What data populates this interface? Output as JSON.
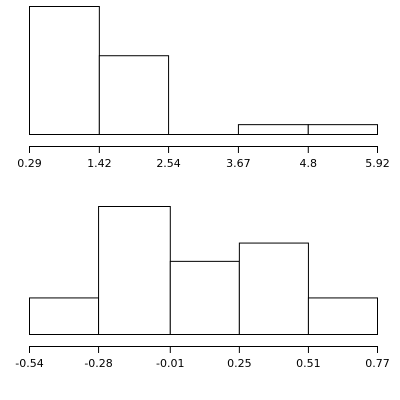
{
  "chart_data": [
    {
      "type": "histogram",
      "bins": [
        0.29,
        1.42,
        2.54,
        3.67,
        4.8,
        5.92
      ],
      "counts": [
        13,
        8,
        0,
        1,
        1
      ],
      "color": "#ffffff"
    },
    {
      "type": "histogram",
      "bins": [
        -0.54,
        -0.28,
        -0.01,
        0.25,
        0.51,
        0.77
      ],
      "counts": [
        2,
        7,
        4,
        5,
        2
      ],
      "color": "#ffffff"
    }
  ]
}
